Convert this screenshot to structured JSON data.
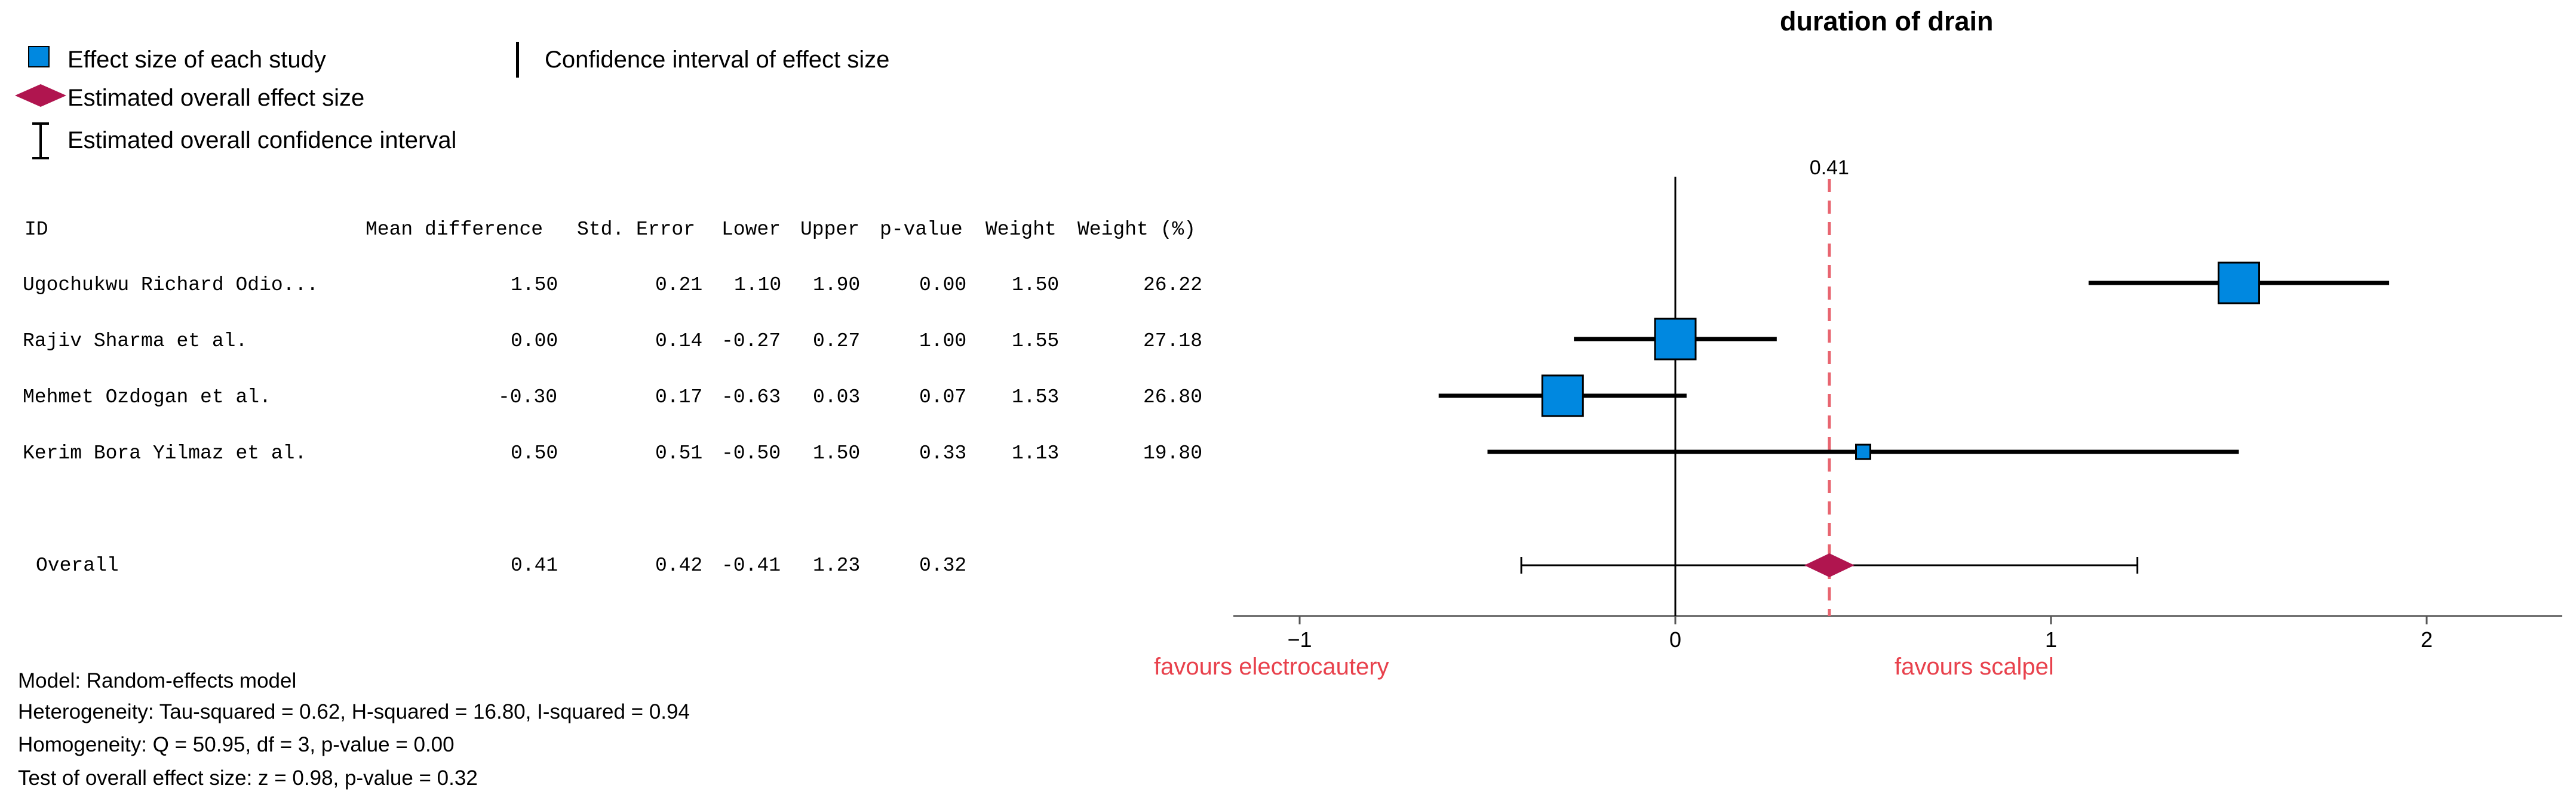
{
  "legend": {
    "study": "Effect size of each study",
    "ci": "Confidence interval of effect size",
    "overall": "Estimated overall effect size",
    "overall_ci": "Estimated overall confidence interval"
  },
  "table": {
    "headers": [
      "ID",
      "Mean difference",
      "Std. Error",
      "Lower",
      "Upper",
      "p-value",
      "Weight",
      "Weight (%)"
    ],
    "rows": [
      {
        "id": "Ugochukwu Richard Odio...",
        "md": "1.50",
        "se": "0.21",
        "lower": "1.10",
        "upper": "1.90",
        "p": "0.00",
        "weight": "1.50",
        "weight_pct": "26.22"
      },
      {
        "id": "Rajiv Sharma et al.",
        "md": "0.00",
        "se": "0.14",
        "lower": "-0.27",
        "upper": "0.27",
        "p": "1.00",
        "weight": "1.55",
        "weight_pct": "27.18"
      },
      {
        "id": "Mehmet Ozdogan et al.",
        "md": "-0.30",
        "se": "0.17",
        "lower": "-0.63",
        "upper": "0.03",
        "p": "0.07",
        "weight": "1.53",
        "weight_pct": "26.80"
      },
      {
        "id": "Kerim Bora Yilmaz et al.",
        "md": "0.50",
        "se": "0.51",
        "lower": "-0.50",
        "upper": "1.50",
        "p": "0.33",
        "weight": "1.13",
        "weight_pct": "19.80"
      }
    ],
    "overall": {
      "id": "Overall",
      "md": "0.41",
      "se": "0.42",
      "lower": "-0.41",
      "upper": "1.23",
      "p": "0.32"
    }
  },
  "footer": {
    "model": "Model: Random-effects model",
    "heterogeneity": "Heterogeneity: Tau-squared = 0.62, H-squared = 16.80, I-squared = 0.94",
    "homogeneity": "Homogeneity: Q = 50.95, df = 3, p-value = 0.00",
    "test": "Test of overall effect size: z = 0.98, p-value = 0.32"
  },
  "chart_data": {
    "type": "scatter",
    "title": "duration of drain",
    "xlim": [
      -1.5,
      2.35
    ],
    "xticks": [
      -1,
      0,
      1,
      2
    ],
    "xtick_labels": [
      "−1",
      "0",
      "1",
      "2"
    ],
    "ref_line_label": "0.41",
    "ref_line_value": 0.41,
    "left_label": "favours electrocautery",
    "right_label": "favours scalpel",
    "studies": [
      {
        "id": "Ugochukwu Richard Odio...",
        "effect": 1.5,
        "lower": 1.1,
        "upper": 1.9,
        "weight_pct": 26.22
      },
      {
        "id": "Rajiv Sharma et al.",
        "effect": 0.0,
        "lower": -0.27,
        "upper": 0.27,
        "weight_pct": 27.18
      },
      {
        "id": "Mehmet Ozdogan et al.",
        "effect": -0.3,
        "lower": -0.63,
        "upper": 0.03,
        "weight_pct": 26.8
      },
      {
        "id": "Kerim Bora Yilmaz et al.",
        "effect": 0.5,
        "lower": -0.5,
        "upper": 1.5,
        "weight_pct": 19.8
      }
    ],
    "overall": {
      "effect": 0.41,
      "lower": -0.41,
      "upper": 1.23
    },
    "colors": {
      "square": "#0088e0",
      "diamond": "#b0154f",
      "ref_line": "#e8646f",
      "favour_text": "#e8414c"
    }
  }
}
